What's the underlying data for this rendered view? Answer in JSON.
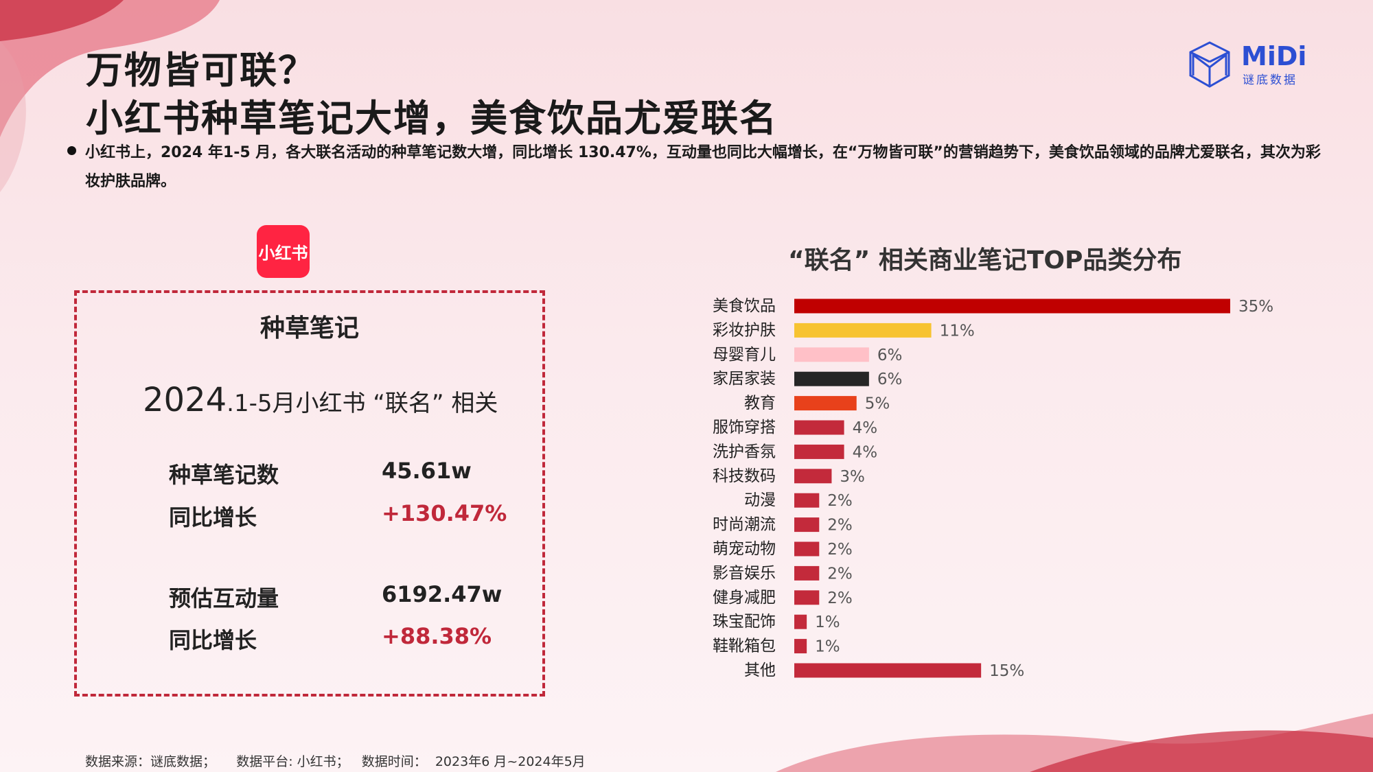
{
  "title": {
    "line1": "万物皆可联？",
    "line2": "小红书种草笔记大增，美食饮品尤爱联名"
  },
  "brand": {
    "name": "MiDi",
    "subtitle": "谜底数据",
    "color": "#2c4fd3"
  },
  "bullet": "小红书上，2024 年1-5 月，各大联名活动的种草笔记数大增，同比增长 130.47%，互动量也同比大幅增长，在“万物皆可联”的营销趋势下，美食饮品领域的品牌尤爱联名，其次为彩妆护肤品牌。",
  "platform_logo": {
    "label": "小红书",
    "color": "#ff2442"
  },
  "stats_box": {
    "heading": "种草笔记",
    "period_year": "2024",
    "period_rest": ".1-5月小红书 “联名” 相关",
    "rows": [
      {
        "label": "种草笔记数",
        "value": "45.61w"
      },
      {
        "label": "同比增长",
        "value": "+130.47%"
      },
      {
        "label": "预估互动量",
        "value": "6192.47w"
      },
      {
        "label": "同比增长",
        "value": "+88.38%"
      }
    ]
  },
  "chart_data": {
    "type": "bar",
    "orientation": "horizontal",
    "title": "“联名” 相关商业笔记TOP品类分布",
    "categories": [
      "美食饮品",
      "彩妆护肤",
      "母婴育儿",
      "家居家装",
      "教育",
      "服饰穿搭",
      "洗护香氛",
      "科技数码",
      "动漫",
      "时尚潮流",
      "萌宠动物",
      "影音娱乐",
      "健身减肥",
      "珠宝配饰",
      "鞋靴箱包",
      "其他"
    ],
    "values": [
      35,
      11,
      6,
      6,
      5,
      4,
      4,
      3,
      2,
      2,
      2,
      2,
      2,
      1,
      1,
      15
    ],
    "labels": [
      "35%",
      "11%",
      "6%",
      "6%",
      "5%",
      "4%",
      "4%",
      "3%",
      "2%",
      "2%",
      "2%",
      "2%",
      "2%",
      "1%",
      "1%",
      "15%"
    ],
    "colors": [
      "#c00000",
      "#f7c331",
      "#ffc0c7",
      "#262626",
      "#e8411b",
      "#c32a3b",
      "#c32a3b",
      "#c32a3b",
      "#c32a3b",
      "#c32a3b",
      "#c32a3b",
      "#c32a3b",
      "#c32a3b",
      "#c32a3b",
      "#c32a3b",
      "#c32a3b"
    ],
    "xlim": [
      0,
      35
    ],
    "grid": false
  },
  "footer": "数据来源：谜底数据；     数据平台: 小红书；   数据时间：  2023年6 月~2024年5月"
}
